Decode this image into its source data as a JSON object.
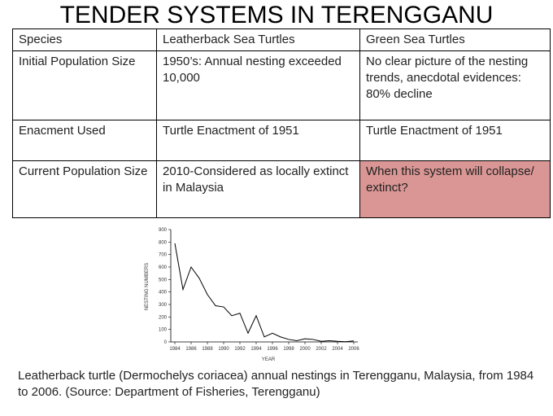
{
  "header": {
    "title": "TENDER SYSTEMS IN TERENGGANU"
  },
  "table": {
    "rows": [
      [
        "Species",
        "Leatherback Sea Turtles",
        "Green Sea Turtles"
      ],
      [
        "Initial Population Size",
        "1950’s: Annual nesting exceeded 10,000",
        "No clear picture of the nesting trends, anecdotal evidences: 80% decline"
      ],
      [
        "Enacment Used",
        "Turtle Enactment of 1951",
        "Turtle Enactment of 1951"
      ],
      [
        "Current Population Size",
        "2010-Considered as locally extinct in Malaysia",
        "When this system will collapse/ extinct?"
      ]
    ],
    "highlight_color": "#d99694"
  },
  "chart_data": {
    "type": "line",
    "x_label": "YEAR",
    "y_label": "NESTING NUMBERS",
    "x": [
      1984,
      1985,
      1986,
      1987,
      1988,
      1989,
      1990,
      1991,
      1992,
      1993,
      1994,
      1995,
      1996,
      1997,
      1998,
      1999,
      2000,
      2001,
      2002,
      2003,
      2004,
      2005,
      2006
    ],
    "values": [
      790,
      420,
      600,
      510,
      380,
      290,
      280,
      210,
      230,
      70,
      210,
      40,
      70,
      40,
      20,
      10,
      25,
      20,
      5,
      10,
      5,
      2,
      8
    ],
    "color": "#000000",
    "xlim": [
      1983.5,
      2006.5
    ],
    "xticks": [
      1984,
      1986,
      1988,
      1990,
      1992,
      1994,
      1996,
      1998,
      2000,
      2002,
      2004,
      2006
    ],
    "ylim": [
      0,
      900
    ],
    "yticks": [
      0,
      100,
      200,
      300,
      400,
      500,
      600,
      700,
      800,
      900
    ]
  },
  "caption": "Leatherback turtle (Dermochelys coriacea) annual nestings in Terengganu, Malaysia, from 1984 to 2006. (Source: Department of Fisheries, Terengganu)"
}
